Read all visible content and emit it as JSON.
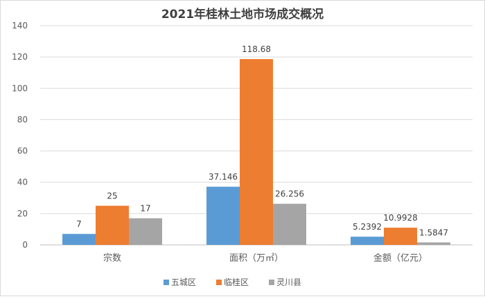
{
  "chart_data": {
    "type": "bar",
    "title": "2021年桂林土地市场成交概况",
    "categories": [
      "宗数",
      "面积（万㎡）",
      "金额（亿元）"
    ],
    "series": [
      {
        "name": "五城区",
        "color": "#5b9bd5",
        "values": [
          7,
          37.146,
          5.2392
        ],
        "labels": [
          "7",
          "37.146",
          "5.2392"
        ]
      },
      {
        "name": "临桂区",
        "color": "#ed7d31",
        "values": [
          25,
          118.68,
          10.9928
        ],
        "labels": [
          "25",
          "118.68",
          "10.9928"
        ]
      },
      {
        "name": "灵川县",
        "color": "#a5a5a5",
        "values": [
          17,
          26.256,
          1.5847
        ],
        "labels": [
          "17",
          "26.256",
          "1.5847"
        ]
      }
    ],
    "ylim": [
      0,
      140
    ],
    "yticks": [
      "0",
      "20",
      "40",
      "60",
      "80",
      "100",
      "120",
      "140"
    ],
    "grid": true,
    "legend": "bottom"
  }
}
